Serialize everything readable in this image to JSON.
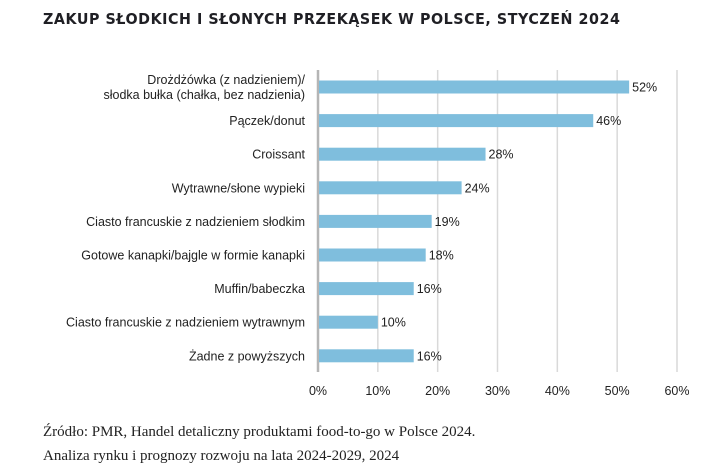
{
  "chart_data": {
    "type": "bar",
    "orientation": "horizontal",
    "title": "ZAKUP SŁODKICH I SŁONYCH PRZEKĄSEK W POLSCE, STYCZEŃ 2024",
    "categories": [
      [
        "Drożdżówka (z nadzieniem)/",
        "słodka bułka (chałka, bez nadzienia)"
      ],
      [
        "Pączek/donut"
      ],
      [
        "Croissant"
      ],
      [
        "Wytrawne/słone wypieki"
      ],
      [
        "Ciasto francuskie z nadzieniem słodkim"
      ],
      [
        "Gotowe kanapki/bajgle w formie kanapki"
      ],
      [
        "Muffin/babeczka"
      ],
      [
        "Ciasto francuskie z nadzieniem wytrawnym"
      ],
      [
        "Żadne z powyższych"
      ]
    ],
    "values": [
      52,
      46,
      28,
      24,
      19,
      18,
      16,
      10,
      16
    ],
    "value_labels": [
      "52%",
      "46%",
      "28%",
      "24%",
      "19%",
      "18%",
      "16%",
      "10%",
      "16%"
    ],
    "xlim": [
      0,
      60
    ],
    "xticks": [
      0,
      10,
      20,
      30,
      40,
      50,
      60
    ],
    "xtick_labels": [
      "0%",
      "10%",
      "20%",
      "30%",
      "40%",
      "50%",
      "60%"
    ],
    "grid": true,
    "bar_color": "#7fbedd",
    "xlabel": "",
    "ylabel": ""
  },
  "source": {
    "line1": "Źródło: PMR, Handel detaliczny produktami food-to-go w Polsce 2024.",
    "line2": "Analiza rynku i prognozy rozwoju na lata 2024-2029, 2024"
  }
}
